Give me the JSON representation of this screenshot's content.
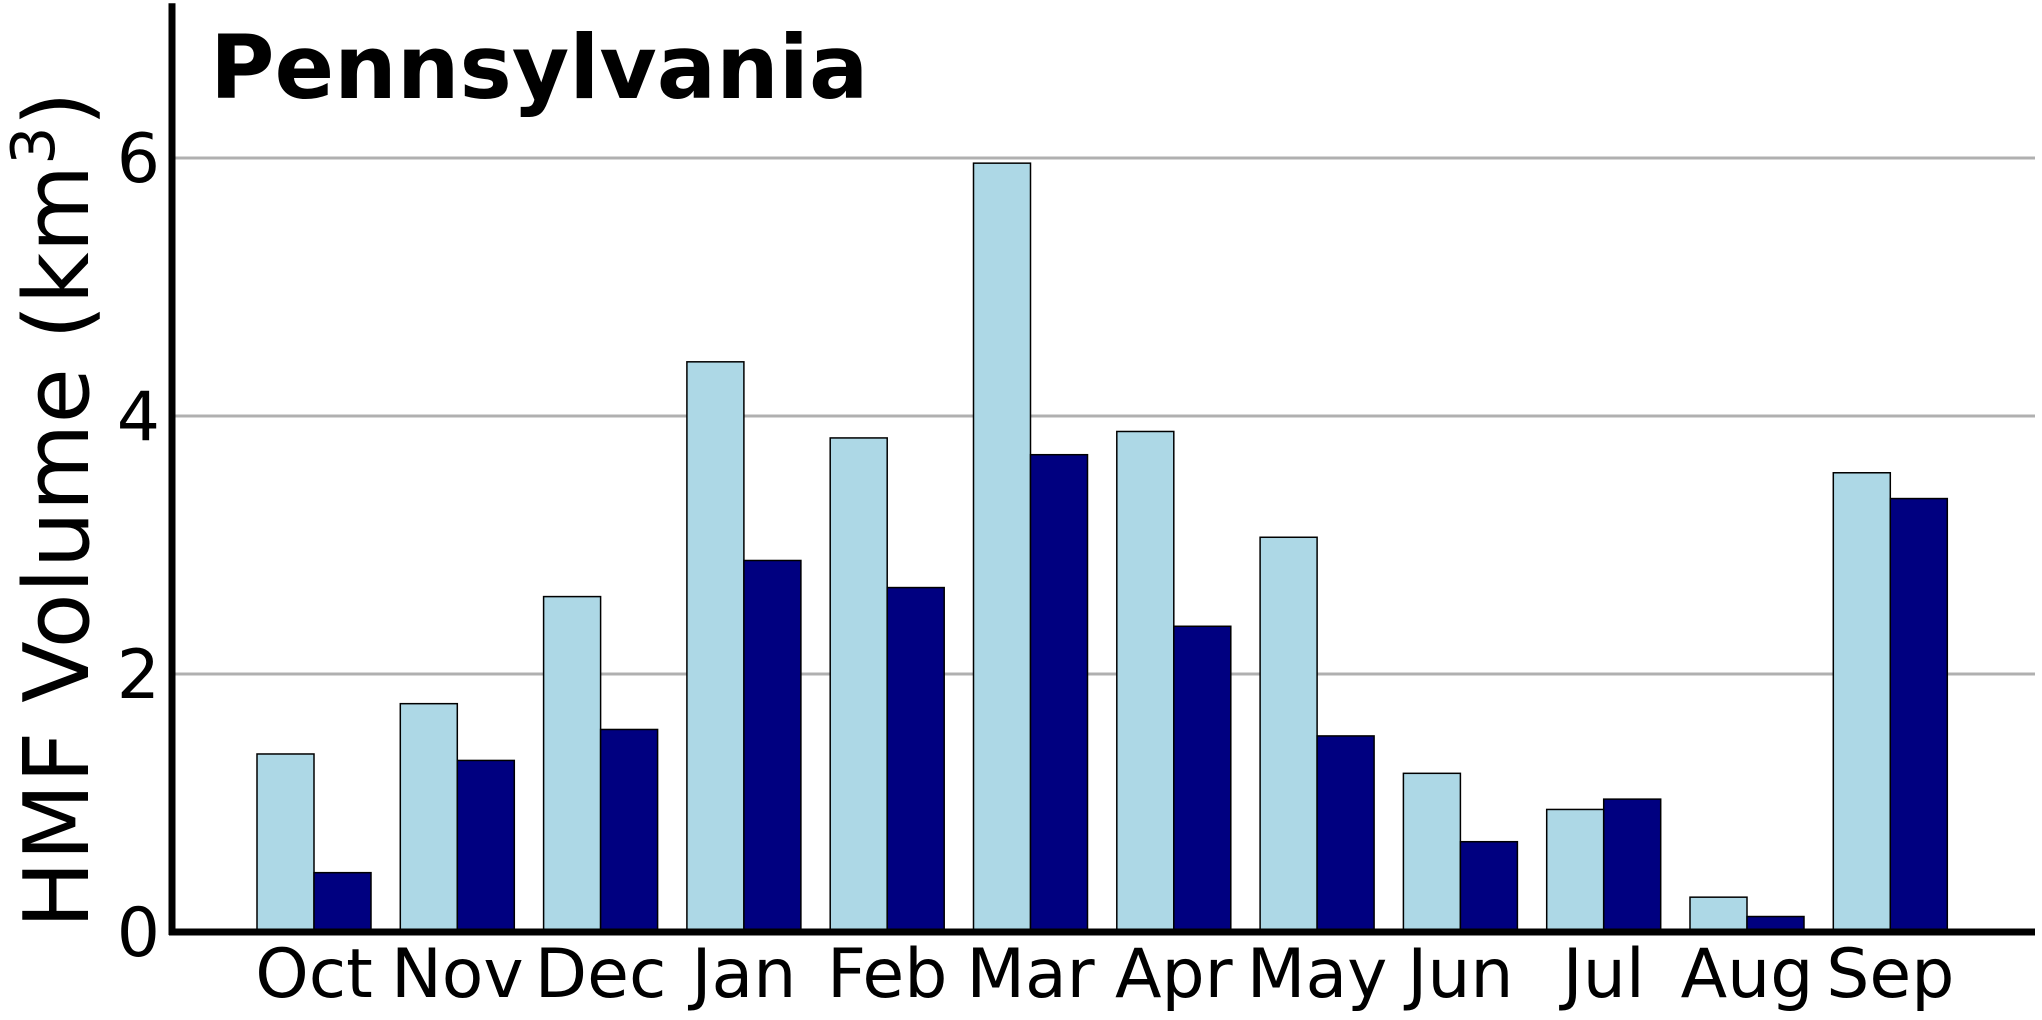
{
  "chart_data": {
    "type": "bar",
    "title": "Pennsylvania",
    "xlabel": "",
    "ylabel": "HMF Volume (km",
    "ylabel_superscript": "3",
    "ylabel_close": ")",
    "categories": [
      "Oct",
      "Nov",
      "Dec",
      "Jan",
      "Feb",
      "Mar",
      "Apr",
      "May",
      "Jun",
      "Jul",
      "Aug",
      "Sep"
    ],
    "series": [
      {
        "color": "#add8e6",
        "values": [
          1.38,
          1.77,
          2.6,
          4.42,
          3.83,
          5.96,
          3.88,
          3.06,
          1.23,
          0.95,
          0.27,
          3.56
        ]
      },
      {
        "color": "#000080",
        "values": [
          0.46,
          1.33,
          1.57,
          2.88,
          2.67,
          3.7,
          2.37,
          1.52,
          0.7,
          1.03,
          0.12,
          3.36
        ]
      }
    ],
    "ylim": [
      0,
      7.2
    ],
    "yticks": [
      0,
      2,
      4,
      6
    ],
    "grid": "horizontal",
    "legend": "none"
  }
}
